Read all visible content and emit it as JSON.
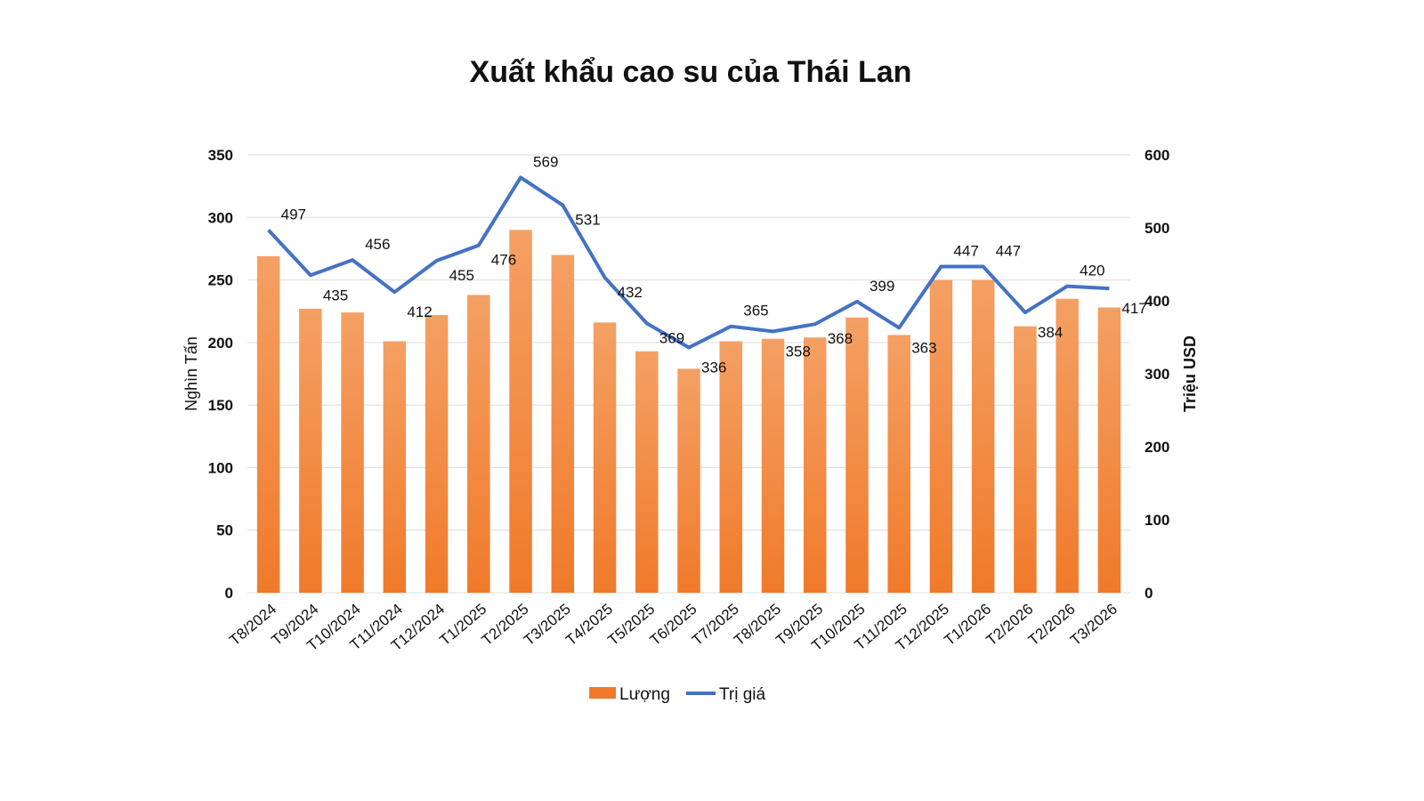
{
  "chart_data": {
    "type": "bar",
    "title": "Xuất khẩu cao su của Thái Lan",
    "categories": [
      "T8/2024",
      "T9/2024",
      "T10/2024",
      "T11/2024",
      "T12/2024",
      "T1/2025",
      "T2/2025",
      "T3/2025",
      "T4/2025",
      "T5/2025",
      "T6/2025",
      "T7/2025",
      "T8/2025",
      "T9/2025",
      "T10/2025",
      "T11/2025",
      "T12/2025",
      "T1/2026",
      "T2/2026",
      "T2/2026",
      "T3/2026"
    ],
    "series": [
      {
        "name": "Lượng",
        "type": "bar",
        "axis": "left",
        "color": "#f07a2a",
        "values": [
          269,
          227,
          224,
          201,
          222,
          238,
          290,
          270,
          216,
          193,
          179,
          201,
          203,
          204,
          220,
          206,
          250,
          250,
          213,
          235,
          228
        ]
      },
      {
        "name": "Trị giá",
        "type": "line",
        "axis": "right",
        "color": "#4472c4",
        "values": [
          497,
          435,
          456,
          412,
          455,
          476,
          569,
          531,
          432,
          369,
          336,
          365,
          358,
          368,
          399,
          363,
          447,
          447,
          384,
          420,
          417
        ],
        "labels": [
          "497",
          "435",
          "456",
          "412",
          "455",
          "476",
          "569",
          "531",
          "432",
          "369",
          "336",
          "365",
          "358",
          "368",
          "399",
          "363",
          "447",
          "447",
          "384",
          "420",
          "417"
        ]
      }
    ],
    "ylabel": "Nghìn Tấn",
    "y2label": "Triệu USD",
    "ylim": [
      0,
      350
    ],
    "y2lim": [
      0,
      600
    ],
    "yticks": [
      "0",
      "50",
      "100",
      "150",
      "200",
      "250",
      "300",
      "350"
    ],
    "y2ticks": [
      "0",
      "100",
      "200",
      "300",
      "400",
      "500",
      "600"
    ],
    "grid": true,
    "legend_position": "bottom"
  }
}
